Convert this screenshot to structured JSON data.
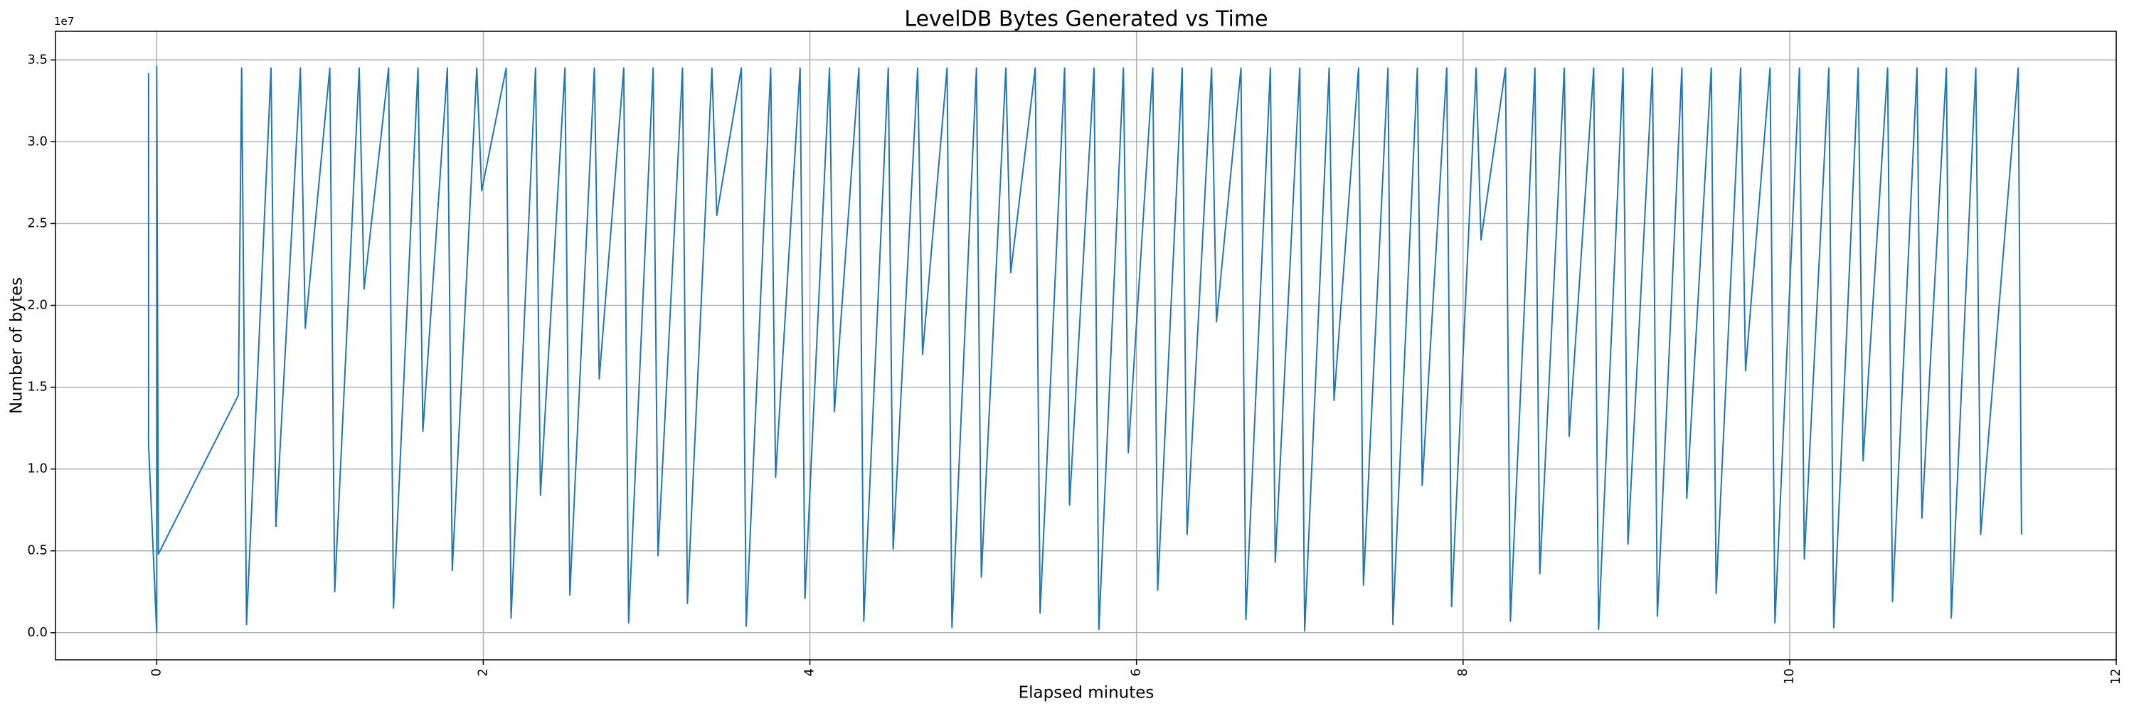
{
  "chart_data": {
    "type": "line",
    "title": "LevelDB Bytes Generated vs Time",
    "x_label": "Elapsed minutes",
    "y_label": "Number of bytes",
    "y_offset_label": "1e7",
    "color": "#1f77b4",
    "grid": true,
    "xlim": [
      -0.62,
      12
    ],
    "xticks": [
      0,
      2,
      4,
      6,
      8,
      10,
      12
    ],
    "ylim": [
      -1660000,
      36750000
    ],
    "yticks": [
      {
        "value": 0,
        "label": "0.0"
      },
      {
        "value": 5000000,
        "label": "0.5"
      },
      {
        "value": 10000000,
        "label": "1.0"
      },
      {
        "value": 15000000,
        "label": "1.5"
      },
      {
        "value": 20000000,
        "label": "2.0"
      },
      {
        "value": 25000000,
        "label": "2.5"
      },
      {
        "value": 30000000,
        "label": "3.0"
      },
      {
        "value": 35000000,
        "label": "3.5"
      }
    ],
    "x": [
      -0.05,
      -0.05,
      0,
      0,
      0.01,
      0.5,
      0.52,
      0.55,
      0.7,
      0.73,
      0.88,
      0.91,
      1.06,
      1.09,
      1.24,
      1.27,
      1.42,
      1.45,
      1.6,
      1.63,
      1.78,
      1.81,
      1.96,
      1.99,
      2.14,
      2.17,
      2.32,
      2.35,
      2.5,
      2.53,
      2.68,
      2.71,
      2.86,
      2.89,
      3.04,
      3.07,
      3.22,
      3.25,
      3.4,
      3.43,
      3.58,
      3.61,
      3.76,
      3.79,
      3.94,
      3.97,
      4.12,
      4.15,
      4.3,
      4.33,
      4.48,
      4.51,
      4.66,
      4.69,
      4.84,
      4.87,
      5.02,
      5.05,
      5.2,
      5.23,
      5.38,
      5.41,
      5.56,
      5.59,
      5.74,
      5.77,
      5.92,
      5.95,
      6.1,
      6.13,
      6.28,
      6.31,
      6.46,
      6.49,
      6.64,
      6.67,
      6.82,
      6.85,
      7.0,
      7.03,
      7.18,
      7.21,
      7.36,
      7.39,
      7.54,
      7.57,
      7.72,
      7.75,
      7.9,
      7.93,
      8.08,
      8.11,
      8.26,
      8.29,
      8.44,
      8.47,
      8.62,
      8.65,
      8.8,
      8.83,
      8.98,
      9.01,
      9.16,
      9.19,
      9.34,
      9.37,
      9.52,
      9.55,
      9.7,
      9.73,
      9.88,
      9.91,
      10.06,
      10.09,
      10.24,
      10.27,
      10.42,
      10.45,
      10.6,
      10.63,
      10.78,
      10.81,
      10.96,
      10.99,
      11.14,
      11.17,
      11.4,
      11.42
    ],
    "values": [
      34200000,
      11500000,
      0,
      34600000,
      4800000,
      14500000,
      34500000,
      500000,
      34500000,
      6500000,
      34500000,
      18600000,
      34500000,
      2500000,
      34500000,
      21000000,
      34500000,
      1500000,
      34500000,
      12300000,
      34500000,
      3800000,
      34500000,
      27000000,
      34500000,
      900000,
      34500000,
      8400000,
      34500000,
      2300000,
      34500000,
      15500000,
      34500000,
      600000,
      34500000,
      4700000,
      34500000,
      1800000,
      34500000,
      25500000,
      34500000,
      400000,
      34500000,
      9500000,
      34500000,
      2100000,
      34500000,
      13500000,
      34500000,
      700000,
      34500000,
      5100000,
      34500000,
      17000000,
      34500000,
      300000,
      34500000,
      3400000,
      34500000,
      22000000,
      34500000,
      1200000,
      34500000,
      7800000,
      34500000,
      200000,
      34500000,
      11000000,
      34500000,
      2600000,
      34500000,
      6000000,
      34500000,
      19000000,
      34500000,
      800000,
      34500000,
      4300000,
      34500000,
      100000,
      34500000,
      14200000,
      34500000,
      2900000,
      34500000,
      500000,
      34500000,
      9000000,
      34500000,
      1600000,
      34500000,
      24000000,
      34500000,
      700000,
      34500000,
      3600000,
      34500000,
      12000000,
      34500000,
      200000,
      34500000,
      5400000,
      34500000,
      1000000,
      34500000,
      8200000,
      34500000,
      2400000,
      34500000,
      16000000,
      34500000,
      600000,
      34500000,
      4500000,
      34500000,
      300000,
      34500000,
      10500000,
      34500000,
      1900000,
      34500000,
      7000000,
      34500000,
      900000,
      34500000,
      6000000,
      34500000,
      6000000
    ]
  }
}
